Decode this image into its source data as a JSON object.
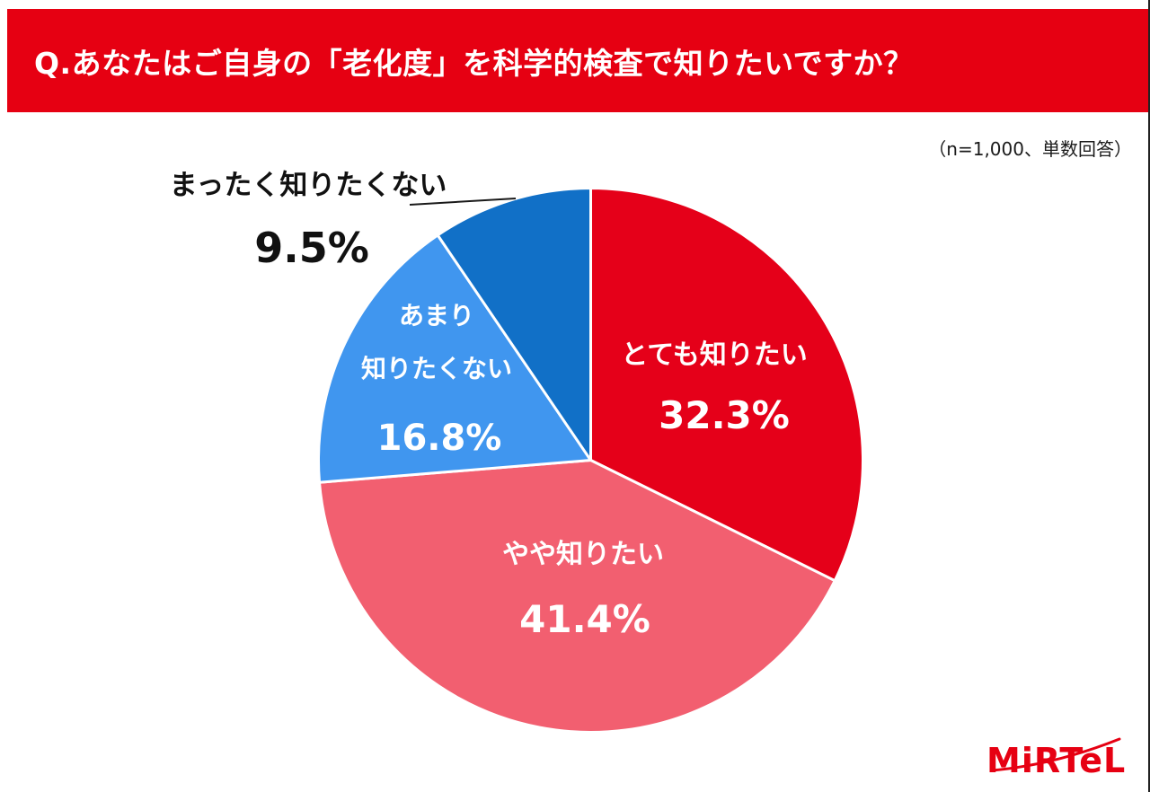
{
  "header": {
    "question": "Q.あなたはご自身の「老化度」を科学的検査で知りたいですか？"
  },
  "survey_note": "（n=1,000、単数回答）",
  "colors": {
    "header_bg": "#e60012",
    "logo_red": "#e60012",
    "outside_label_text": "#111111",
    "inside_label_text": "#ffffff"
  },
  "chart_data": {
    "type": "pie",
    "title": "あなたはご自身の「老化度」を科学的検査で知りたいですか？",
    "sample_size_note": "（n=1,000、単数回答）",
    "n": 1000,
    "unit": "%",
    "start_angle_deg": 0,
    "direction": "clockwise",
    "legend_position": "none",
    "categories": [
      "とても知りたい",
      "やや知りたい",
      "あまり知りたくない",
      "まったく知りたくない"
    ],
    "values": [
      32.3,
      41.4,
      16.8,
      9.5
    ],
    "slices": [
      {
        "label": "とても知りたい",
        "value": 32.3,
        "pct_label": "32.3%",
        "color": "#e50019",
        "label_position": "inside"
      },
      {
        "label": "やや知りたい",
        "value": 41.4,
        "pct_label": "41.4%",
        "color": "#f25f70",
        "label_position": "inside"
      },
      {
        "label": "あまり知りたくない",
        "value": 16.8,
        "pct_label": "16.8%",
        "color": "#4096ef",
        "label_line1": "あまり",
        "label_line2": "知りたくない",
        "label_position": "inside"
      },
      {
        "label": "まったく知りたくない",
        "value": 9.5,
        "pct_label": "9.5%",
        "color": "#1170c7",
        "label_position": "outside-with-leader-line"
      }
    ]
  },
  "logo": {
    "text": "MiRTeL"
  }
}
